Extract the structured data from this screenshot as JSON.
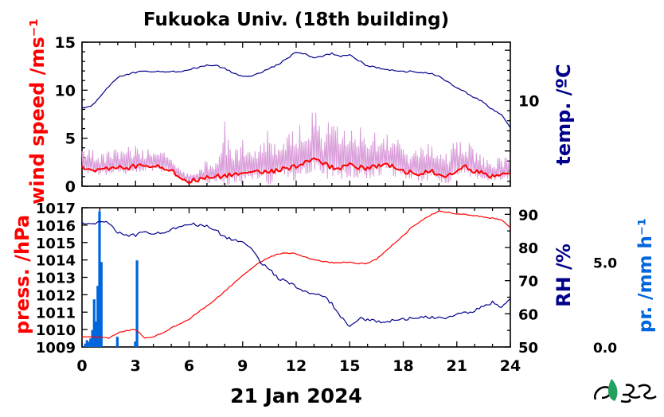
{
  "title": "Fukuoka Univ. (18th building)",
  "date_label": "21 Jan 2024",
  "colors": {
    "temperature": "#00008b",
    "wind_mean": "#ff0000",
    "wind_gust": "#d99bd9",
    "pressure": "#ff0000",
    "rh": "#00008b",
    "precipitation": "#0066dd",
    "logo": "#22a060"
  },
  "chart_data": [
    {
      "type": "line",
      "panel": "top",
      "x": {
        "label": "",
        "range": [
          0,
          24
        ],
        "ticks": [
          0,
          3,
          6,
          9,
          12,
          15,
          18,
          21,
          24
        ],
        "tick_labels": [
          "0",
          "3",
          "6",
          "9",
          "12",
          "15",
          "18",
          "21",
          "24"
        ]
      },
      "y_left": {
        "label": "wind speed /ms⁻¹",
        "range": [
          0,
          15
        ],
        "ticks": [
          0,
          5,
          10,
          15
        ]
      },
      "y_right": {
        "label": "temp. /ºC",
        "range": [
          1.5,
          15.8
        ],
        "ticks": [
          10
        ]
      },
      "series": [
        {
          "key": "temperature",
          "axis": "right",
          "color": "#00008b",
          "x": [
            0,
            0.5,
            1,
            1.5,
            2,
            2.5,
            3,
            3.5,
            4,
            4.5,
            5,
            5.5,
            6,
            6.5,
            7,
            7.5,
            8,
            8.5,
            9,
            9.5,
            10,
            10.5,
            11,
            11.5,
            12,
            12.5,
            13,
            13.5,
            14,
            14.5,
            15,
            15.5,
            16,
            16.5,
            17,
            17.5,
            18,
            18.5,
            19,
            19.5,
            20,
            20.5,
            21,
            21.5,
            22,
            22.5,
            23,
            23.5,
            24
          ],
          "y": [
            9.3,
            9.5,
            10.3,
            11.4,
            12.3,
            12.6,
            12.8,
            12.9,
            12.9,
            12.9,
            12.9,
            12.9,
            13.1,
            13.3,
            13.5,
            13.5,
            13.2,
            12.7,
            12.4,
            12.4,
            12.8,
            13.2,
            13.6,
            14.2,
            14.8,
            14.6,
            14.2,
            14.4,
            14.7,
            14.4,
            14.5,
            14.0,
            13.4,
            13.3,
            13.1,
            13.0,
            12.9,
            12.9,
            12.8,
            12.7,
            12.4,
            11.9,
            11.3,
            10.8,
            10.3,
            9.8,
            9.1,
            8.6,
            7.3
          ]
        },
        {
          "key": "wind_mean",
          "axis": "left",
          "color": "#ff0000",
          "x": [
            0,
            0.5,
            1,
            1.5,
            2,
            2.5,
            3,
            3.5,
            4,
            4.5,
            5,
            5.5,
            6,
            6.5,
            7,
            7.5,
            8,
            8.5,
            9,
            9.5,
            10,
            10.5,
            11,
            11.5,
            12,
            12.5,
            13,
            13.5,
            14,
            14.5,
            15,
            15.5,
            16,
            16.5,
            17,
            17.5,
            18,
            18.5,
            19,
            19.5,
            20,
            20.5,
            21,
            21.5,
            22,
            22.5,
            23,
            23.5,
            24
          ],
          "y": [
            2.0,
            1.9,
            1.6,
            1.8,
            2.0,
            1.9,
            2.1,
            2.0,
            2.2,
            2.0,
            1.7,
            1.0,
            0.5,
            0.7,
            0.9,
            1.0,
            1.1,
            1.2,
            1.3,
            1.4,
            1.6,
            1.5,
            1.7,
            1.9,
            2.0,
            2.4,
            2.8,
            2.3,
            2.0,
            1.9,
            2.2,
            2.0,
            1.8,
            2.1,
            2.4,
            2.0,
            1.6,
            1.4,
            1.3,
            1.6,
            1.1,
            1.2,
            1.7,
            2.0,
            1.5,
            1.3,
            1.0,
            1.2,
            1.3
          ]
        },
        {
          "key": "wind_gust",
          "axis": "left",
          "color": "#d99bd9",
          "x": [
            0,
            0.5,
            1,
            1.5,
            2,
            2.5,
            3,
            3.5,
            4,
            4.5,
            5,
            5.5,
            6,
            6.5,
            7,
            7.5,
            8,
            8.5,
            9,
            9.5,
            10,
            10.5,
            11,
            11.5,
            12,
            12.5,
            13,
            13.5,
            14,
            14.5,
            15,
            15.5,
            16,
            16.5,
            17,
            17.5,
            18,
            18.5,
            19,
            19.5,
            20,
            20.5,
            21,
            21.5,
            22,
            22.5,
            23,
            23.5,
            24
          ],
          "y": [
            3.1,
            3.3,
            2.7,
            3.1,
            3.3,
            3.4,
            3.6,
            3.2,
            3.5,
            3.4,
            2.6,
            1.6,
            1.0,
            1.4,
            2.2,
            2.0,
            5.0,
            2.8,
            4.0,
            3.2,
            3.8,
            4.6,
            3.3,
            4.2,
            5.2,
            4.6,
            6.4,
            4.6,
            5.8,
            4.4,
            4.9,
            5.0,
            4.0,
            4.6,
            4.3,
            4.6,
            3.1,
            2.9,
            3.4,
            3.6,
            2.6,
            3.0,
            3.8,
            3.9,
            3.1,
            2.5,
            2.1,
            2.6,
            2.2
          ]
        }
      ]
    },
    {
      "type": "line",
      "panel": "bottom",
      "x": {
        "label": "",
        "range": [
          0,
          24
        ],
        "ticks": [
          0,
          3,
          6,
          9,
          12,
          15,
          18,
          21,
          24
        ],
        "tick_labels": [
          "0",
          "3",
          "6",
          "9",
          "12",
          "15",
          "18",
          "21",
          "24"
        ]
      },
      "y_left": {
        "label": "press. /hPa",
        "range": [
          1009,
          1017
        ],
        "ticks": [
          1009,
          1010,
          1011,
          1012,
          1013,
          1014,
          1015,
          1016,
          1017
        ]
      },
      "y_right": {
        "label": "RH /%",
        "range": [
          50,
          92
        ],
        "ticks": [
          50,
          60,
          70,
          80,
          90
        ]
      },
      "y_right2": {
        "label": "pr. /mm h⁻¹",
        "ticks": [
          "0.0",
          "5.0"
        ],
        "range": [
          0,
          8.2
        ]
      },
      "series": [
        {
          "key": "pressure",
          "axis": "left",
          "color": "#ff0000",
          "x": [
            0,
            0.5,
            1,
            1.5,
            2,
            2.5,
            3,
            3.5,
            4,
            4.5,
            5,
            5.5,
            6,
            6.5,
            7,
            7.5,
            8,
            8.5,
            9,
            9.5,
            10,
            10.5,
            11,
            11.5,
            12,
            12.5,
            13,
            13.5,
            14,
            14.5,
            15,
            15.5,
            16,
            16.5,
            17,
            17.5,
            18,
            18.5,
            19,
            19.5,
            20,
            20.5,
            21,
            21.5,
            22,
            22.5,
            23,
            23.5,
            24
          ],
          "y": [
            1009.6,
            1009.6,
            1009.55,
            1009.5,
            1009.8,
            1009.95,
            1010.0,
            1009.5,
            1009.6,
            1009.8,
            1010.1,
            1010.35,
            1010.6,
            1011.0,
            1011.35,
            1011.75,
            1012.2,
            1012.65,
            1013.1,
            1013.5,
            1013.9,
            1014.15,
            1014.35,
            1014.4,
            1014.35,
            1014.15,
            1014.0,
            1013.9,
            1013.85,
            1013.85,
            1013.85,
            1013.8,
            1013.8,
            1014.05,
            1014.5,
            1014.95,
            1015.4,
            1015.9,
            1016.25,
            1016.55,
            1016.8,
            1016.75,
            1016.65,
            1016.6,
            1016.55,
            1016.45,
            1016.4,
            1016.3,
            1015.85
          ]
        },
        {
          "key": "rh",
          "axis": "right",
          "color": "#00008b",
          "x": [
            0,
            0.5,
            1,
            1.5,
            2,
            2.5,
            3,
            3.5,
            4,
            4.5,
            5,
            5.5,
            6,
            6.5,
            7,
            7.5,
            8,
            8.5,
            9,
            9.5,
            10,
            10.5,
            11,
            11.5,
            12,
            12.5,
            13,
            13.5,
            14,
            14.5,
            15,
            15.5,
            16,
            16.5,
            17,
            17.5,
            18,
            18.5,
            19,
            19.5,
            20,
            20.5,
            21,
            21.5,
            22,
            22.5,
            23,
            23.5,
            24
          ],
          "y": [
            87.5,
            87.5,
            87.5,
            87.4,
            84.5,
            83.8,
            83.7,
            84.6,
            84.3,
            84.5,
            85.5,
            86.6,
            87.2,
            86.8,
            86.4,
            85.2,
            83.2,
            82.2,
            81.6,
            79.5,
            75.7,
            73.5,
            70.6,
            69.8,
            68.0,
            66.5,
            65.8,
            65.3,
            63.1,
            59.2,
            55.8,
            58.7,
            58.1,
            57.8,
            57.5,
            58.2,
            58.5,
            58.6,
            59.2,
            58.8,
            58.8,
            59.0,
            60.2,
            60.2,
            60.9,
            62.2,
            63.5,
            61.8,
            64.5
          ]
        },
        {
          "key": "precipitation",
          "axis": "right2",
          "type": "bar",
          "color": "#0066dd",
          "x": [
            0.2,
            0.3,
            0.4,
            0.5,
            0.6,
            0.7,
            0.8,
            0.9,
            1.0,
            1.1,
            2.0,
            3.0,
            3.1
          ],
          "y": [
            0.2,
            0.4,
            0.3,
            0.5,
            1.0,
            2.8,
            1.5,
            3.6,
            8.0,
            5.0,
            0.6,
            0.3,
            5.1
          ]
        }
      ]
    }
  ]
}
